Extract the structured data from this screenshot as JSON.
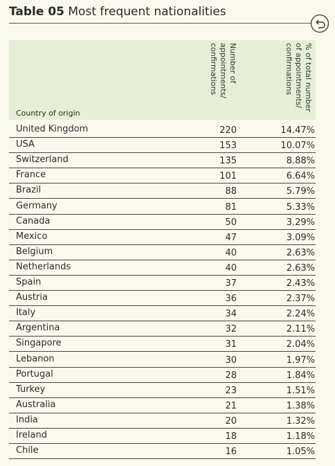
{
  "header": {
    "label": "Table 05",
    "title": "Most frequent nationalities"
  },
  "table": {
    "columns": [
      "Country of origin",
      [
        "Number of",
        "appointments/",
        "confirmations"
      ],
      [
        "% of total number",
        "of appointments/",
        "confirmations"
      ]
    ],
    "rows": [
      [
        "United Kingdom",
        "220",
        "14.47%"
      ],
      [
        "USA",
        "153",
        "10.07%"
      ],
      [
        "Switzerland",
        "135",
        "8.88%"
      ],
      [
        "France",
        "101",
        "6.64%"
      ],
      [
        "Brazil",
        "88",
        "5.79%"
      ],
      [
        "Germany",
        "81",
        "5.33%"
      ],
      [
        "Canada",
        "50",
        "3.29%"
      ],
      [
        "Mexico",
        "47",
        "3.09%"
      ],
      [
        "Belgium",
        "40",
        "2.63%"
      ],
      [
        "Netherlands",
        "40",
        "2.63%"
      ],
      [
        "Spain",
        "37",
        "2.43%"
      ],
      [
        "Austria",
        "36",
        "2.37%"
      ],
      [
        "Italy",
        "34",
        "2.24%"
      ],
      [
        "Argentina",
        "32",
        "2.11%"
      ],
      [
        "Singapore",
        "31",
        "2.04%"
      ],
      [
        "Lebanon",
        "30",
        "1.97%"
      ],
      [
        "Portugal",
        "28",
        "1.84%"
      ],
      [
        "Turkey",
        "23",
        "1.51%"
      ],
      [
        "Australia",
        "21",
        "1.38%"
      ],
      [
        "India",
        "20",
        "1.32%"
      ],
      [
        "Ireland",
        "18",
        "1.18%"
      ],
      [
        "Chile",
        "16",
        "1.05%"
      ]
    ]
  }
}
